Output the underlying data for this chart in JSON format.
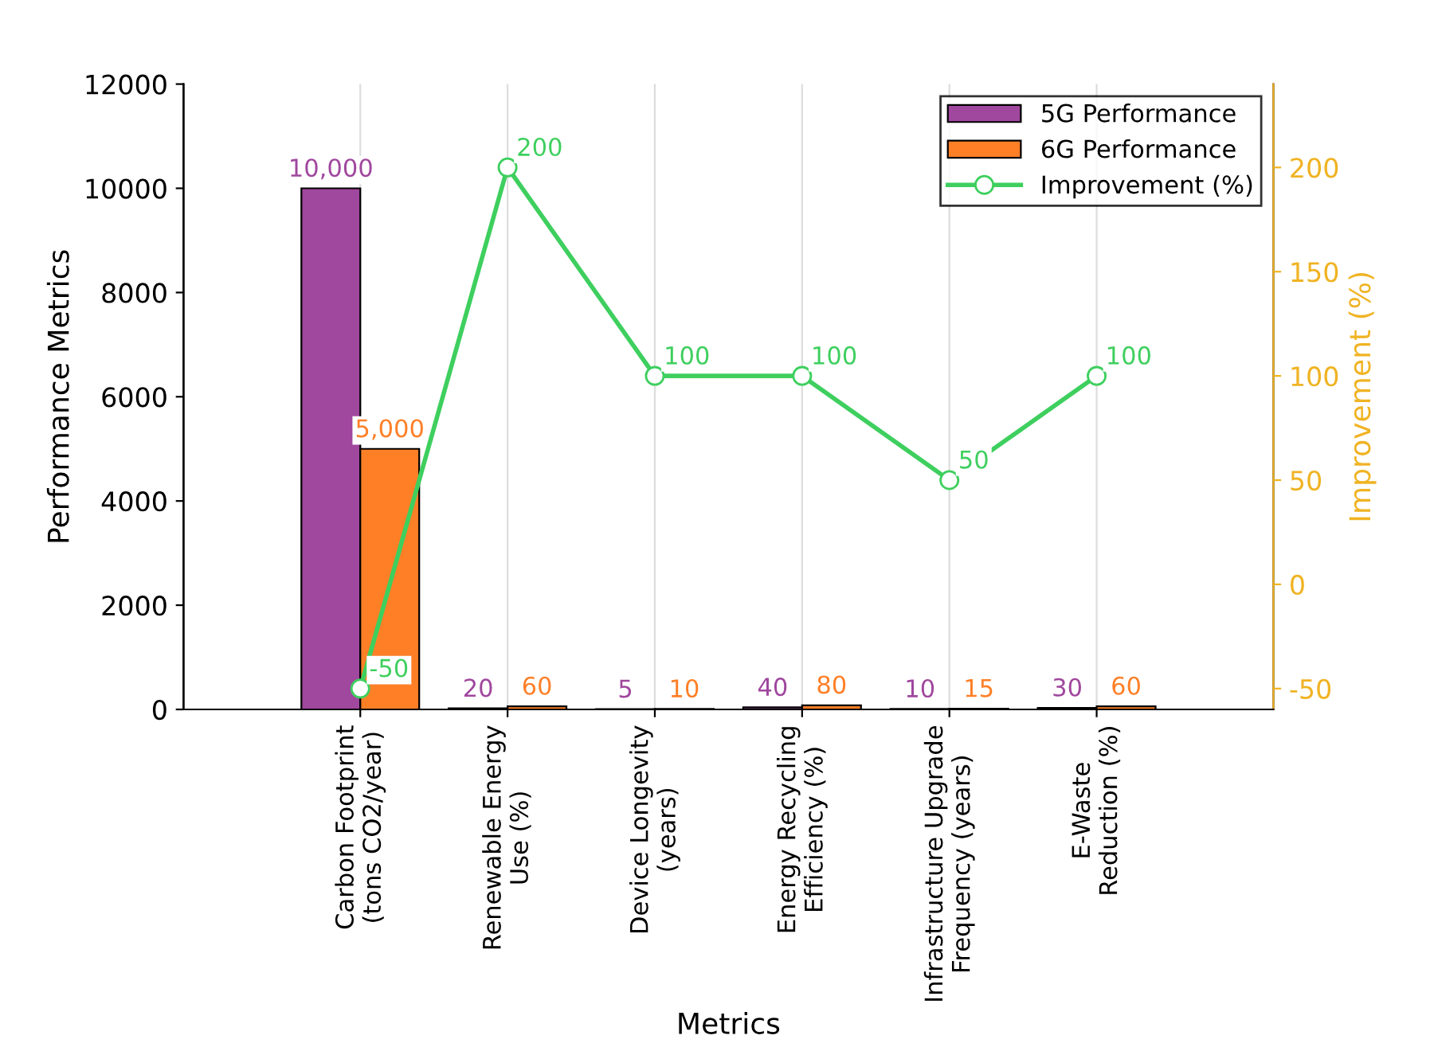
{
  "chart_data": {
    "type": "bar",
    "xlabel": "Metrics",
    "ylabel": "Performance Metrics",
    "y2label": "Improvement (%)",
    "categories": [
      "Carbon Footprint\n(tons CO2/year)",
      "Renewable Energy\nUse (%)",
      "Device Longevity\n(years)",
      "Energy Recycling\nEfficiency (%)",
      "Infrastructure Upgrade\nFrequency (years)",
      "E-Waste\nReduction (%)"
    ],
    "series": [
      {
        "name": "5G Performance",
        "color": "#a0479e",
        "values": [
          10000,
          20,
          5,
          40,
          10,
          30
        ],
        "value_labels": [
          "10,000",
          "20",
          "5",
          "40",
          "10",
          "30"
        ]
      },
      {
        "name": "6G Performance",
        "color": "#ff7f27",
        "values": [
          5000,
          60,
          10,
          80,
          15,
          60
        ],
        "value_labels": [
          "5,000",
          "60",
          "10",
          "80",
          "15",
          "60"
        ]
      },
      {
        "name": "Improvement (%)",
        "type": "line",
        "axis": "y2",
        "color": "#3ecf5e",
        "marker": "circle",
        "values": [
          -50,
          200,
          100,
          100,
          50,
          100
        ],
        "value_labels": [
          "-50",
          "200",
          "100",
          "100",
          "50",
          "100"
        ]
      }
    ],
    "ylim": [
      0,
      12000
    ],
    "yticks": [
      0,
      2000,
      4000,
      6000,
      8000,
      10000,
      12000
    ],
    "y2lim": [
      -60,
      240
    ],
    "y2ticks": [
      -50,
      0,
      50,
      100,
      150,
      200
    ],
    "grid": "x",
    "legend": "top right"
  }
}
